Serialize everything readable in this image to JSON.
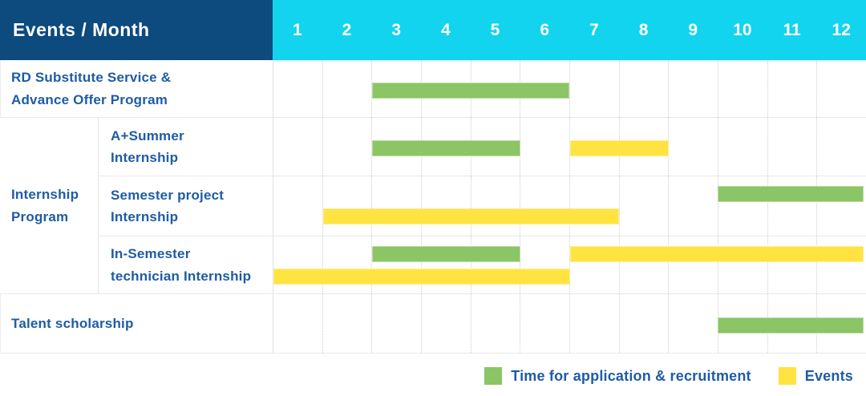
{
  "header": {
    "corner_label": "Events / Month",
    "months": [
      "1",
      "2",
      "3",
      "4",
      "5",
      "6",
      "7",
      "8",
      "9",
      "10",
      "11",
      "12"
    ]
  },
  "colors": {
    "navy": "#0d4a7d",
    "cyan": "#12d4ef",
    "green": "#8bc565",
    "yellow": "#ffe341",
    "label_blue": "#1e5ca4"
  },
  "legend": [
    {
      "label": "Time for application & recruitment",
      "color": "green"
    },
    {
      "label": "Events",
      "color": "yellow"
    }
  ],
  "chart_data": {
    "type": "bar",
    "variant": "gantt",
    "title": "Events / Month",
    "x_axis": {
      "label": "Month",
      "ticks": [
        1,
        2,
        3,
        4,
        5,
        6,
        7,
        8,
        9,
        10,
        11,
        12
      ],
      "range": [
        1,
        12
      ]
    },
    "legend_entries": [
      "Time for application & recruitment",
      "Events"
    ],
    "group_label_lines": [
      "Internship",
      "Program"
    ],
    "rows": [
      {
        "label_lines": [
          "RD Substitute Service &",
          "Advance Offer Program"
        ],
        "group": "",
        "bars": [
          {
            "series": "Time for application & recruitment",
            "color": "green",
            "start_month": 3,
            "end_month": 6,
            "line": "center"
          }
        ]
      },
      {
        "label_lines": [
          "A+Summer",
          "Internship"
        ],
        "group": "Internship Program",
        "bars": [
          {
            "series": "Time for application & recruitment",
            "color": "green",
            "start_month": 3,
            "end_month": 5,
            "line": "center"
          },
          {
            "series": "Events",
            "color": "yellow",
            "start_month": 7,
            "end_month": 8,
            "line": "center"
          }
        ]
      },
      {
        "label_lines": [
          "Semester project",
          "Internship"
        ],
        "group": "Internship Program",
        "bars": [
          {
            "series": "Time for application & recruitment",
            "color": "green",
            "start_month": 10,
            "end_month": 12,
            "line": "top"
          },
          {
            "series": "Events",
            "color": "yellow",
            "start_month": 2,
            "end_month": 7,
            "line": "bottom"
          }
        ]
      },
      {
        "label_lines": [
          "In-Semester",
          "technician Internship"
        ],
        "group": "Internship Program",
        "bars": [
          {
            "series": "Time for application & recruitment",
            "color": "green",
            "start_month": 3,
            "end_month": 5,
            "line": "top"
          },
          {
            "series": "Events",
            "color": "yellow",
            "start_month": 7,
            "end_month": 12,
            "line": "top"
          },
          {
            "series": "Events",
            "color": "yellow",
            "start_month": 1,
            "end_month": 6,
            "line": "bottom"
          }
        ]
      },
      {
        "label_lines": [
          "Talent scholarship"
        ],
        "group": "",
        "bars": [
          {
            "series": "Time for application & recruitment",
            "color": "green",
            "start_month": 10,
            "end_month": 12,
            "line": "center"
          }
        ]
      }
    ]
  }
}
